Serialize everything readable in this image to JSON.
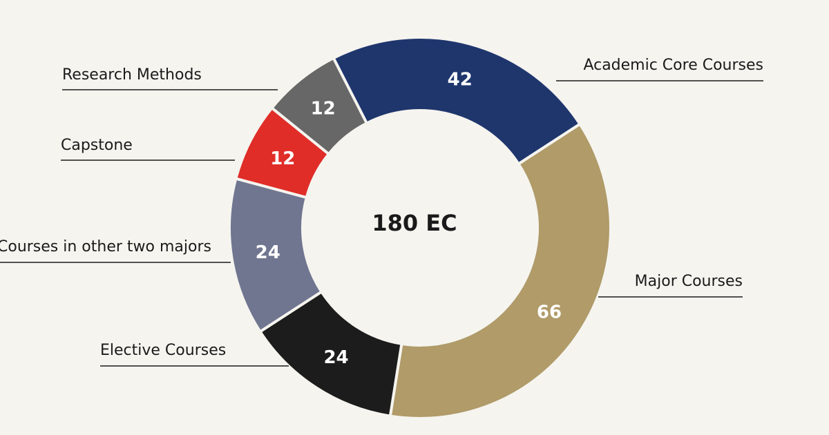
{
  "chart_data": {
    "type": "pie",
    "center_label": "180 EC",
    "categories": [
      "Academic Core Courses",
      "Major Courses",
      "Elective Courses",
      "Courses in other two majors",
      "Capstone",
      "Research Methods"
    ],
    "values": [
      42,
      66,
      24,
      24,
      12,
      12
    ],
    "colors": [
      "#1f366d",
      "#b09b69",
      "#1c1c1c",
      "#707690",
      "#e02d28",
      "#676767"
    ],
    "title": "",
    "legend": "callout labels beside slices"
  }
}
